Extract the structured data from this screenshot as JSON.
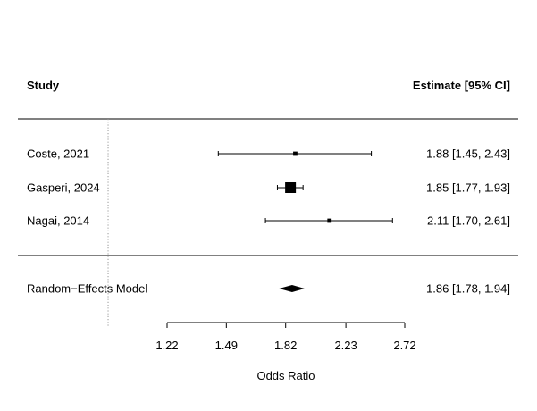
{
  "chart_data": {
    "type": "forest",
    "columns": {
      "study_header": "Study",
      "estimate_header": "Estimate [95% CI]"
    },
    "xlabel": "Odds Ratio",
    "x_scale": "log",
    "reference_line": 1,
    "xticks": [
      {
        "value": 1.22,
        "label": "1.22"
      },
      {
        "value": 1.49,
        "label": "1.49"
      },
      {
        "value": 1.82,
        "label": "1.82"
      },
      {
        "value": 2.23,
        "label": "2.23"
      },
      {
        "value": 2.72,
        "label": "2.72"
      }
    ],
    "studies": [
      {
        "label": "Coste, 2021",
        "estimate": 1.88,
        "lower": 1.45,
        "upper": 2.43,
        "weight": 0.12,
        "text": "1.88 [1.45, 2.43]"
      },
      {
        "label": "Gasperi, 2024",
        "estimate": 1.85,
        "lower": 1.77,
        "upper": 1.93,
        "weight": 0.76,
        "text": "1.85 [1.77, 1.93]"
      },
      {
        "label": "Nagai, 2014",
        "estimate": 2.11,
        "lower": 1.7,
        "upper": 2.61,
        "weight": 0.12,
        "text": "2.11 [1.70, 2.61]"
      }
    ],
    "summary": {
      "label": "Random−Effects Model",
      "estimate": 1.86,
      "lower": 1.78,
      "upper": 1.94,
      "text": "1.86 [1.78, 1.94]"
    },
    "colors": {
      "ink": "#000000",
      "reference": "#999999"
    }
  }
}
